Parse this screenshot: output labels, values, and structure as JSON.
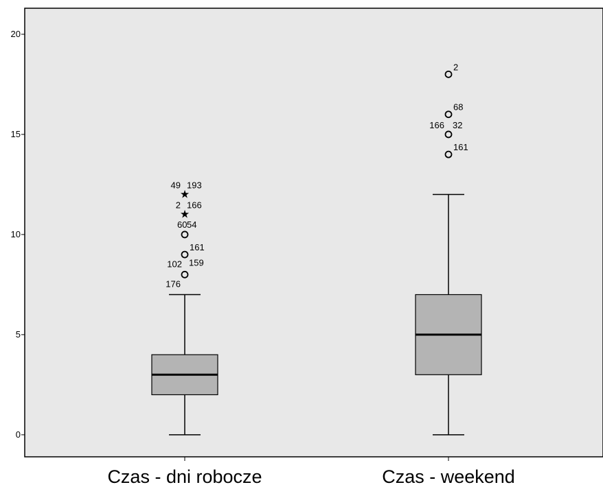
{
  "chart_data": {
    "type": "boxplot",
    "title": "",
    "xlabel": "",
    "ylabel": "",
    "ylim": [
      -1.1,
      21.3
    ],
    "yticks": [
      0,
      5,
      10,
      15,
      20
    ],
    "grid": false,
    "colors": {
      "plot_bg": "#e8e8e8",
      "box_fill": "#b4b4b4",
      "stroke": "#000000"
    },
    "categories": [
      "Czas - dni robocze",
      "Czas - weekend"
    ],
    "boxes": [
      {
        "category": "Czas - dni robocze",
        "min": 0,
        "q1": 2,
        "median": 3,
        "q3": 4,
        "max": 7,
        "outliers": [
          {
            "value": 8,
            "marker": "circle",
            "labels": [
              "102",
              "159",
              "176"
            ]
          },
          {
            "value": 9,
            "marker": "circle",
            "labels": [
              "161"
            ]
          },
          {
            "value": 10,
            "marker": "circle",
            "labels": [
              "60",
              "54"
            ]
          },
          {
            "value": 11,
            "marker": "star",
            "labels": [
              "2",
              "166"
            ]
          },
          {
            "value": 12,
            "marker": "star",
            "labels": [
              "49",
              "193"
            ]
          }
        ]
      },
      {
        "category": "Czas - weekend",
        "min": 0,
        "q1": 3,
        "median": 5,
        "q3": 7,
        "max": 12,
        "outliers": [
          {
            "value": 14,
            "marker": "circle",
            "labels": [
              "161"
            ]
          },
          {
            "value": 15,
            "marker": "circle",
            "labels": [
              "166",
              "32"
            ]
          },
          {
            "value": 16,
            "marker": "circle",
            "labels": [
              "68"
            ]
          },
          {
            "value": 18,
            "marker": "circle",
            "labels": [
              "2"
            ]
          }
        ]
      }
    ]
  }
}
